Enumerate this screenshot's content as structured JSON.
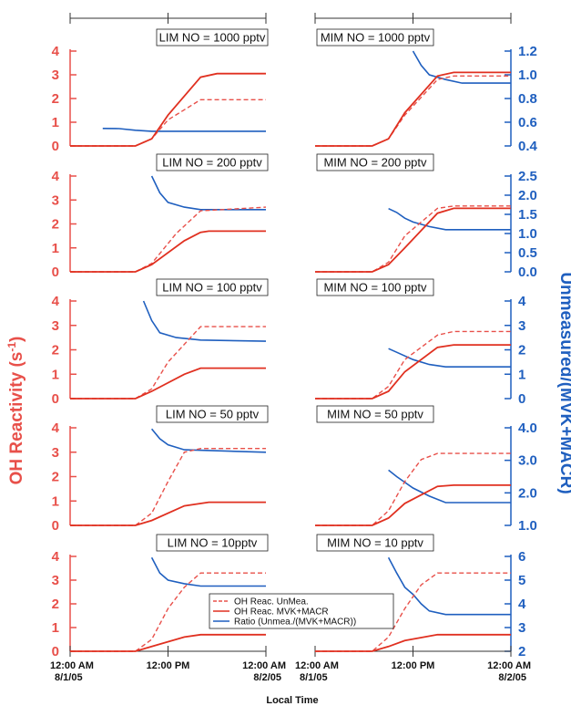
{
  "chart_data": {
    "type": "line",
    "ylabel_left": "OH Reactivity (s⁻¹)",
    "ylabel_left_main": "OH Reactivity (s",
    "ylabel_left_sup": "-1",
    "ylabel_left_end": ")",
    "ylabel_right": "Unmeasured/(MVK+MACR)",
    "xlabel": "Local Time",
    "x_ticks": [
      {
        "main": "12:00 AM",
        "sub": "8/1/05",
        "align": "start"
      },
      {
        "main": "12:00 PM",
        "sub": "",
        "align": "middle"
      },
      {
        "main": "12:00 AM",
        "sub": "8/2/05",
        "align": "end"
      }
    ],
    "x_ticks_right": [
      {
        "main": "12:00 AM",
        "sub": "8/1/05",
        "align": "start"
      },
      {
        "main": "12:00 PM",
        "sub": "",
        "align": "middle"
      },
      {
        "main": "12:00 AM",
        "sub": "8/2/05",
        "align": "end"
      }
    ],
    "x_unit": "hours since 12:00 AM 8/1/05",
    "legend": [
      {
        "name": "OH Reac. UnMea.",
        "style": "dashed",
        "color": "#e8504a"
      },
      {
        "name": "OH Reac. MVK+MACR",
        "style": "solid",
        "color": "#e03020"
      },
      {
        "name": "Ratio (Unmea./(MVK+MACR))",
        "style": "solid",
        "color": "#1f5fbf"
      }
    ],
    "panels": [
      {
        "row": 0,
        "col": 0,
        "title": "LIM NO = 1000 pptv",
        "left_ticks": [
          0,
          1,
          2,
          3,
          4
        ],
        "right_ticks": null,
        "mvk": [
          [
            0,
            0
          ],
          [
            8,
            0
          ],
          [
            10,
            0.3
          ],
          [
            12,
            1.3
          ],
          [
            16,
            2.9
          ],
          [
            18,
            3.05
          ],
          [
            24,
            3.05
          ]
        ],
        "unmea": [
          [
            0,
            0
          ],
          [
            8,
            0
          ],
          [
            10,
            0.3
          ],
          [
            12,
            1.1
          ],
          [
            16,
            1.95
          ],
          [
            24,
            1.95
          ]
        ],
        "ratio_rightcoord": [
          [
            4,
            0.74
          ],
          [
            6,
            0.73
          ],
          [
            8,
            0.66
          ],
          [
            10,
            0.62
          ],
          [
            12,
            0.62
          ],
          [
            24,
            0.62
          ]
        ]
      },
      {
        "row": 0,
        "col": 1,
        "title": "MIM NO = 1000 pptv",
        "left_ticks": [
          0,
          1,
          2,
          3,
          4
        ],
        "right_ticks": [
          0.4,
          0.6,
          0.8,
          1.0,
          1.2
        ],
        "right_min": 0.4,
        "right_max": 1.2,
        "mvk": [
          [
            0,
            0
          ],
          [
            7,
            0
          ],
          [
            9,
            0.3
          ],
          [
            11,
            1.4
          ],
          [
            15,
            2.95
          ],
          [
            17,
            3.1
          ],
          [
            24,
            3.1
          ]
        ],
        "unmea": [
          [
            0,
            0
          ],
          [
            7,
            0
          ],
          [
            9,
            0.3
          ],
          [
            11,
            1.3
          ],
          [
            15,
            2.8
          ],
          [
            17,
            2.95
          ],
          [
            24,
            2.95
          ]
        ],
        "ratio": [
          [
            12,
            1.2
          ],
          [
            13,
            1.08
          ],
          [
            14,
            1.0
          ],
          [
            16,
            0.96
          ],
          [
            18,
            0.93
          ],
          [
            24,
            0.93
          ]
        ]
      },
      {
        "row": 1,
        "col": 0,
        "title": "LIM NO = 200 pptv",
        "left_ticks": [
          0,
          1,
          2,
          3,
          4
        ],
        "right_ticks": null,
        "mvk": [
          [
            0,
            0
          ],
          [
            8,
            0
          ],
          [
            10,
            0.3
          ],
          [
            14,
            1.3
          ],
          [
            16,
            1.65
          ],
          [
            17,
            1.7
          ],
          [
            24,
            1.7
          ]
        ],
        "unmea": [
          [
            0,
            0
          ],
          [
            8,
            0
          ],
          [
            10,
            0.35
          ],
          [
            13,
            1.6
          ],
          [
            16,
            2.55
          ],
          [
            24,
            2.7
          ]
        ],
        "ratio_rightcoord": [
          [
            10,
            4.0
          ],
          [
            11,
            3.3
          ],
          [
            12,
            2.9
          ],
          [
            14,
            2.7
          ],
          [
            16,
            2.6
          ],
          [
            24,
            2.6
          ]
        ]
      },
      {
        "row": 1,
        "col": 1,
        "title": "MIM NO = 200 pptv",
        "left_ticks": [
          0,
          1,
          2,
          3,
          4
        ],
        "right_ticks": [
          0.0,
          0.5,
          1.0,
          1.5,
          2.0,
          2.5
        ],
        "right_min": 0.0,
        "right_max": 2.5,
        "mvk": [
          [
            0,
            0
          ],
          [
            7,
            0
          ],
          [
            9,
            0.3
          ],
          [
            11,
            1.0
          ],
          [
            15,
            2.45
          ],
          [
            17,
            2.65
          ],
          [
            24,
            2.65
          ]
        ],
        "unmea": [
          [
            0,
            0
          ],
          [
            7,
            0
          ],
          [
            9,
            0.4
          ],
          [
            11,
            1.5
          ],
          [
            15,
            2.65
          ],
          [
            17,
            2.75
          ],
          [
            24,
            2.75
          ]
        ],
        "ratio": [
          [
            9,
            1.65
          ],
          [
            10,
            1.55
          ],
          [
            11,
            1.4
          ],
          [
            12,
            1.3
          ],
          [
            14,
            1.18
          ],
          [
            16,
            1.1
          ],
          [
            24,
            1.1
          ]
        ]
      },
      {
        "row": 2,
        "col": 0,
        "title": "LIM NO = 100 pptv",
        "left_ticks": [
          0,
          1,
          2,
          3,
          4
        ],
        "right_ticks": null,
        "mvk": [
          [
            0,
            0
          ],
          [
            8,
            0
          ],
          [
            10,
            0.3
          ],
          [
            14,
            1.0
          ],
          [
            16,
            1.25
          ],
          [
            24,
            1.25
          ]
        ],
        "unmea": [
          [
            0,
            0
          ],
          [
            8,
            0
          ],
          [
            10,
            0.4
          ],
          [
            12,
            1.5
          ],
          [
            16,
            2.95
          ],
          [
            24,
            2.95
          ]
        ],
        "ratio_rightcoord": [
          [
            9,
            4.0
          ],
          [
            10,
            3.2
          ],
          [
            11,
            2.7
          ],
          [
            13,
            2.5
          ],
          [
            16,
            2.4
          ],
          [
            24,
            2.35
          ]
        ]
      },
      {
        "row": 2,
        "col": 1,
        "title": "MIM NO = 100 pptv",
        "left_ticks": [
          0,
          1,
          2,
          3,
          4
        ],
        "right_ticks": [
          0,
          1,
          2,
          3,
          4
        ],
        "right_min": 0,
        "right_max": 4,
        "mvk": [
          [
            0,
            0
          ],
          [
            7,
            0
          ],
          [
            9,
            0.3
          ],
          [
            11,
            1.1
          ],
          [
            15,
            2.1
          ],
          [
            17,
            2.2
          ],
          [
            24,
            2.2
          ]
        ],
        "unmea": [
          [
            0,
            0
          ],
          [
            7,
            0
          ],
          [
            9,
            0.5
          ],
          [
            11,
            1.6
          ],
          [
            15,
            2.6
          ],
          [
            17,
            2.75
          ],
          [
            24,
            2.75
          ]
        ],
        "ratio": [
          [
            9,
            2.05
          ],
          [
            10,
            1.9
          ],
          [
            12,
            1.6
          ],
          [
            14,
            1.4
          ],
          [
            16,
            1.3
          ],
          [
            24,
            1.3
          ]
        ]
      },
      {
        "row": 3,
        "col": 0,
        "title": "LIM NO = 50 pptv",
        "left_ticks": [
          0,
          1,
          2,
          3,
          4
        ],
        "right_ticks": null,
        "mvk": [
          [
            0,
            0
          ],
          [
            8,
            0
          ],
          [
            10,
            0.2
          ],
          [
            14,
            0.8
          ],
          [
            17,
            0.95
          ],
          [
            24,
            0.95
          ]
        ],
        "unmea": [
          [
            0,
            0
          ],
          [
            8,
            0
          ],
          [
            10,
            0.5
          ],
          [
            12,
            1.8
          ],
          [
            14,
            3.0
          ],
          [
            16,
            3.15
          ],
          [
            24,
            3.15
          ]
        ],
        "ratio_rightcoord": [
          [
            10,
            3.95
          ],
          [
            11,
            3.55
          ],
          [
            12,
            3.3
          ],
          [
            14,
            3.1
          ],
          [
            24,
            3.0
          ]
        ]
      },
      {
        "row": 3,
        "col": 1,
        "title": "MIM NO = 50 pptv",
        "left_ticks": [
          0,
          1,
          2,
          3,
          4
        ],
        "right_ticks": [
          1.0,
          2.0,
          3.0,
          4.0
        ],
        "right_min": 1.0,
        "right_max": 4.0,
        "mvk": [
          [
            0,
            0
          ],
          [
            7,
            0
          ],
          [
            9,
            0.3
          ],
          [
            11,
            0.9
          ],
          [
            15,
            1.6
          ],
          [
            17,
            1.65
          ],
          [
            24,
            1.65
          ]
        ],
        "unmea": [
          [
            0,
            0
          ],
          [
            7,
            0
          ],
          [
            9,
            0.6
          ],
          [
            11,
            1.8
          ],
          [
            13,
            2.7
          ],
          [
            15,
            2.95
          ],
          [
            24,
            2.95
          ]
        ],
        "ratio": [
          [
            9,
            2.7
          ],
          [
            10,
            2.5
          ],
          [
            12,
            2.15
          ],
          [
            14,
            1.9
          ],
          [
            16,
            1.7
          ],
          [
            24,
            1.7
          ]
        ]
      },
      {
        "row": 4,
        "col": 0,
        "title": "LIM NO = 10pptv",
        "left_ticks": [
          0,
          1,
          2,
          3,
          4
        ],
        "right_ticks": null,
        "mvk": [
          [
            0,
            0
          ],
          [
            8,
            0
          ],
          [
            10,
            0.2
          ],
          [
            14,
            0.6
          ],
          [
            16,
            0.7
          ],
          [
            24,
            0.7
          ]
        ],
        "unmea": [
          [
            0,
            0
          ],
          [
            8,
            0
          ],
          [
            10,
            0.5
          ],
          [
            12,
            1.8
          ],
          [
            14,
            2.7
          ],
          [
            16,
            3.3
          ],
          [
            24,
            3.3
          ]
        ],
        "ratio_rightcoord": [
          [
            10,
            3.95
          ],
          [
            11,
            3.3
          ],
          [
            12,
            3.0
          ],
          [
            14,
            2.85
          ],
          [
            16,
            2.75
          ],
          [
            24,
            2.75
          ]
        ]
      },
      {
        "row": 4,
        "col": 1,
        "title": "MIM NO = 10 pptv",
        "left_ticks": [
          0,
          1,
          2,
          3,
          4
        ],
        "right_ticks": [
          2,
          3,
          4,
          5,
          6
        ],
        "right_min": 2,
        "right_max": 6,
        "mvk": [
          [
            0,
            0
          ],
          [
            7,
            0
          ],
          [
            9,
            0.2
          ],
          [
            11,
            0.45
          ],
          [
            15,
            0.7
          ],
          [
            24,
            0.7
          ]
        ],
        "unmea": [
          [
            0,
            0
          ],
          [
            7,
            0
          ],
          [
            9,
            0.6
          ],
          [
            11,
            1.8
          ],
          [
            13,
            2.8
          ],
          [
            15,
            3.3
          ],
          [
            24,
            3.3
          ]
        ],
        "ratio": [
          [
            9,
            5.95
          ],
          [
            10,
            5.3
          ],
          [
            11,
            4.7
          ],
          [
            12,
            4.4
          ],
          [
            13,
            4.0
          ],
          [
            14,
            3.7
          ],
          [
            16,
            3.55
          ],
          [
            24,
            3.55
          ]
        ]
      }
    ]
  },
  "colors": {
    "left_axis": "#e8504a",
    "right_axis": "#1f5fbf",
    "mvk_line": "#e03020",
    "unmea_line": "#e8504a",
    "ratio_line": "#1f5fbf"
  }
}
